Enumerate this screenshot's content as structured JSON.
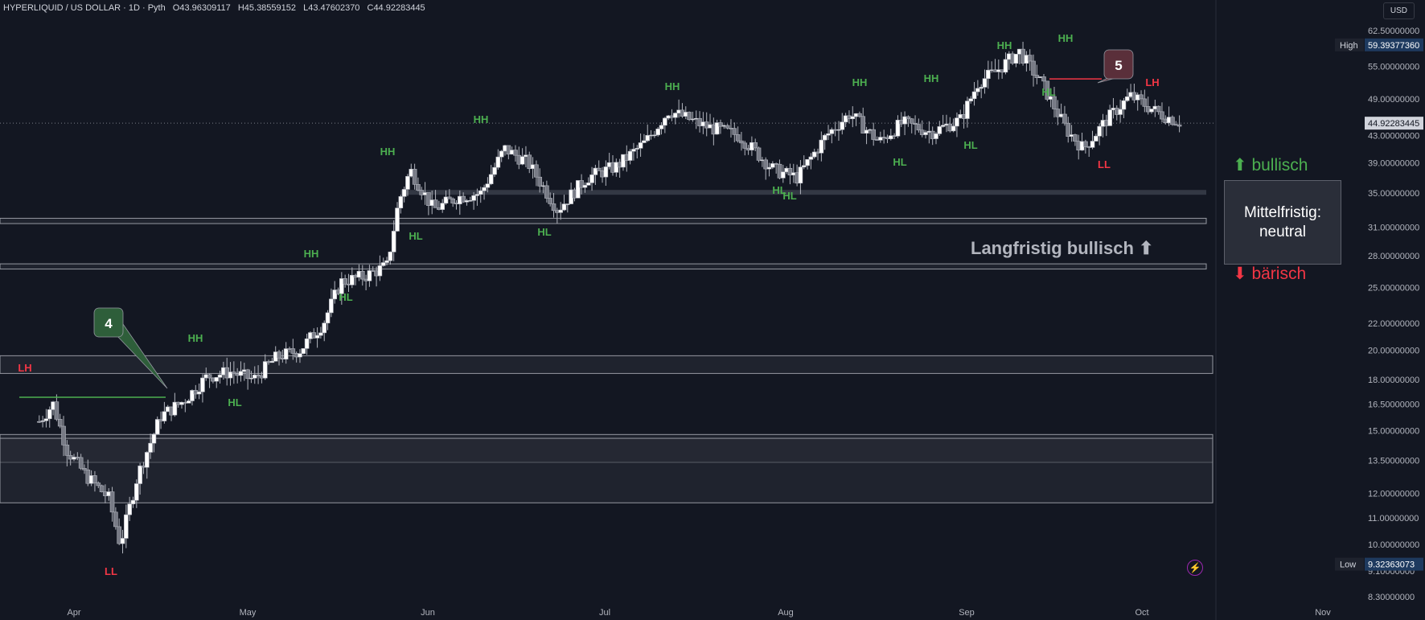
{
  "header": {
    "symbol": "HYPERLIQUID / US DOLLAR · 1D · Pyth",
    "open": "O43.96309117",
    "high": "H45.38559152",
    "low": "L43.47602370",
    "close": "C44.92283445"
  },
  "currency_button": "USD",
  "price_scale": {
    "type": "log",
    "ticks": [
      "62.50000000",
      "55.00000000",
      "49.00000000",
      "43.00000000",
      "39.00000000",
      "35.00000000",
      "31.00000000",
      "28.00000000",
      "25.00000000",
      "22.00000000",
      "20.00000000",
      "18.00000000",
      "16.50000000",
      "15.00000000",
      "13.50000000",
      "12.00000000",
      "11.00000000",
      "10.00000000",
      "9.10000000",
      "8.30000000"
    ],
    "high_marker": {
      "label": "High",
      "value": "59.39377360"
    },
    "low_marker": {
      "label": "Low",
      "value": "9.32363073"
    },
    "last_price": "44.92283445"
  },
  "time_axis": [
    "Apr",
    "May",
    "Jun",
    "Jul",
    "Aug",
    "Sep",
    "Oct",
    "Nov"
  ],
  "structure_labels": [
    {
      "text": "LH",
      "kind": "bear"
    },
    {
      "text": "LL",
      "kind": "bear"
    },
    {
      "text": "HH",
      "kind": "bull"
    },
    {
      "text": "HL",
      "kind": "bull"
    },
    {
      "text": "HH",
      "kind": "bull"
    },
    {
      "text": "HL",
      "kind": "bull"
    },
    {
      "text": "HH",
      "kind": "bull"
    },
    {
      "text": "HL",
      "kind": "bull"
    },
    {
      "text": "HH",
      "kind": "bull"
    },
    {
      "text": "HL",
      "kind": "bull"
    },
    {
      "text": "HH",
      "kind": "bull"
    },
    {
      "text": "HL",
      "kind": "bull"
    },
    {
      "text": "HH",
      "kind": "bull"
    },
    {
      "text": "HL",
      "kind": "bull"
    },
    {
      "text": "HH",
      "kind": "bull"
    },
    {
      "text": "HL",
      "kind": "bull"
    },
    {
      "text": "HH",
      "kind": "bull"
    },
    {
      "text": "HH",
      "kind": "bull"
    },
    {
      "text": "HL",
      "kind": "bull"
    },
    {
      "text": "LH",
      "kind": "bear"
    },
    {
      "text": "LL",
      "kind": "bear"
    },
    {
      "text": "HL",
      "kind": "bull"
    }
  ],
  "callouts": [
    {
      "text": "4",
      "color": "#2e5e3a"
    },
    {
      "text": "5",
      "color": "#5a2f3a"
    }
  ],
  "zones": [
    {
      "low": 13.4,
      "high": 14.8
    },
    {
      "low": 34.8,
      "high": 35.4
    },
    {
      "low": 31.4,
      "high": 32.0
    },
    {
      "low": 26.7,
      "high": 27.2
    },
    {
      "low": 18.4,
      "high": 19.6
    },
    {
      "low": 11.6,
      "high": 14.6
    }
  ],
  "legend": {
    "bullish": "bullisch",
    "bearish": "bärisch",
    "mid_term": "Mittelfristig: neutral",
    "mid_term_line1": "Mittelfristig:",
    "mid_term_line2": "neutral",
    "long_term": "Langfristig bullisch"
  },
  "colors": {
    "bull": "#4caf50",
    "bear": "#f23645",
    "bg": "#131722",
    "candle": "#d1d4dc"
  },
  "chart_data": {
    "type": "candlestick",
    "title": "HYPERLIQUID / US DOLLAR",
    "y_scale": "log",
    "ylim": [
      8.0,
      65.0
    ],
    "x_ticks": [
      "Apr",
      "May",
      "Jun",
      "Jul",
      "Aug",
      "Sep",
      "Oct",
      "Nov"
    ],
    "close_path": [
      [
        "Mar 22",
        15.5
      ],
      [
        "Mar 26",
        16.5
      ],
      [
        "Mar 30",
        14.0
      ],
      [
        "Apr 03",
        12.8
      ],
      [
        "Apr 07",
        11.8
      ],
      [
        "Apr 09",
        10.0
      ],
      [
        "Apr 12",
        12.8
      ],
      [
        "Apr 16",
        15.8
      ],
      [
        "Apr 20",
        16.7
      ],
      [
        "Apr 24",
        18.2
      ],
      [
        "Apr 28",
        18.5
      ],
      [
        "May 02",
        18.0
      ],
      [
        "May 06",
        19.5
      ],
      [
        "May 10",
        20.0
      ],
      [
        "May 14",
        22.0
      ],
      [
        "May 17",
        25.5
      ],
      [
        "May 21",
        26.0
      ],
      [
        "May 25",
        27.0
      ],
      [
        "May 27",
        34.0
      ],
      [
        "May 29",
        38.0
      ],
      [
        "Jun 02",
        33.0
      ],
      [
        "Jun 06",
        34.5
      ],
      [
        "Jun 10",
        35.0
      ],
      [
        "Jun 14",
        41.0
      ],
      [
        "Jun 18",
        39.0
      ],
      [
        "Jun 23",
        33.0
      ],
      [
        "Jun 28",
        37.0
      ],
      [
        "Jul 03",
        38.5
      ],
      [
        "Jul 08",
        42.0
      ],
      [
        "Jul 12",
        47.0
      ],
      [
        "Jul 18",
        44.5
      ],
      [
        "Jul 24",
        43.0
      ],
      [
        "Jul 30",
        38.0
      ],
      [
        "Aug 03",
        37.0
      ],
      [
        "Aug 08",
        43.0
      ],
      [
        "Aug 12",
        46.5
      ],
      [
        "Aug 17",
        42.0
      ],
      [
        "Aug 21",
        45.0
      ],
      [
        "Aug 26",
        43.5
      ],
      [
        "Aug 31",
        45.5
      ],
      [
        "Sep 03",
        52.0
      ],
      [
        "Sep 06",
        54.0
      ],
      [
        "Sep 10",
        58.0
      ],
      [
        "Sep 14",
        51.5
      ],
      [
        "Sep 18",
        44.0
      ],
      [
        "Sep 21",
        41.0
      ],
      [
        "Sep 25",
        45.5
      ],
      [
        "Sep 29",
        49.5
      ],
      [
        "Oct 04",
        46.5
      ],
      [
        "Oct 08",
        44.9
      ]
    ]
  }
}
